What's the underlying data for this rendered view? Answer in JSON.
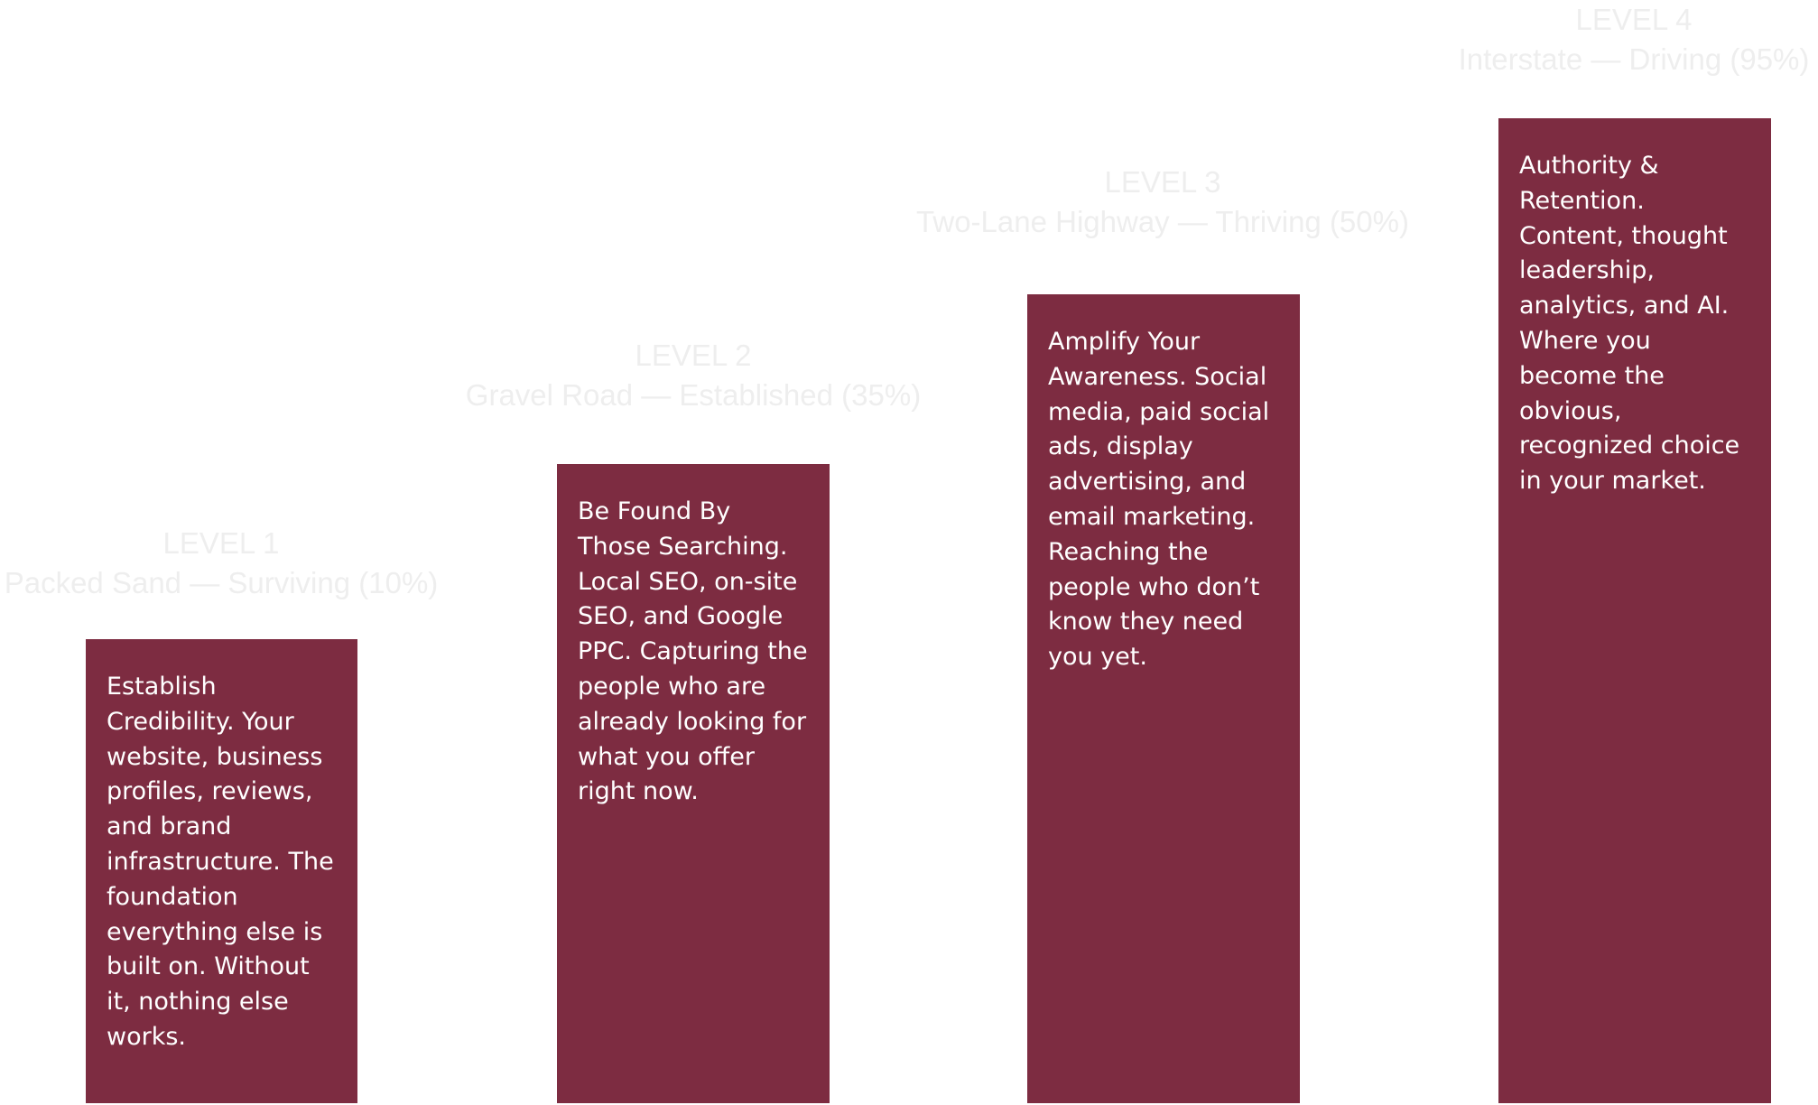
{
  "colors": {
    "background": "#ffffff",
    "card": "#7d2c41",
    "card_text": "#ffffff",
    "heading_text": "#eeeeee"
  },
  "levels": [
    {
      "level": "LEVEL 1",
      "subtitle": "Packed Sand — Surviving (10%)",
      "description": "Establish Credibility. Your website, business profiles, reviews, and brand infrastructure. The foundation everything else is built on. Without it, nothing else works."
    },
    {
      "level": "LEVEL 2",
      "subtitle": "Gravel Road — Established (35%)",
      "description": "Be Found By Those Searching. Local SEO, on-site SEO, and Google PPC. Capturing the people who are already looking for what you offer right now."
    },
    {
      "level": "LEVEL 3",
      "subtitle": "Two-Lane Highway — Thriving (50%)",
      "description": "Amplify Your Awareness. Social media, paid social ads, display advertising, and email marketing. Reaching the people who don’t know they need you yet."
    },
    {
      "level": "LEVEL 4",
      "subtitle": "Interstate — Driving (95%)",
      "description": "Authority & Retention. Content, thought leadership, analytics, and AI. Where you become the obvious, recognized choice in your market."
    }
  ]
}
